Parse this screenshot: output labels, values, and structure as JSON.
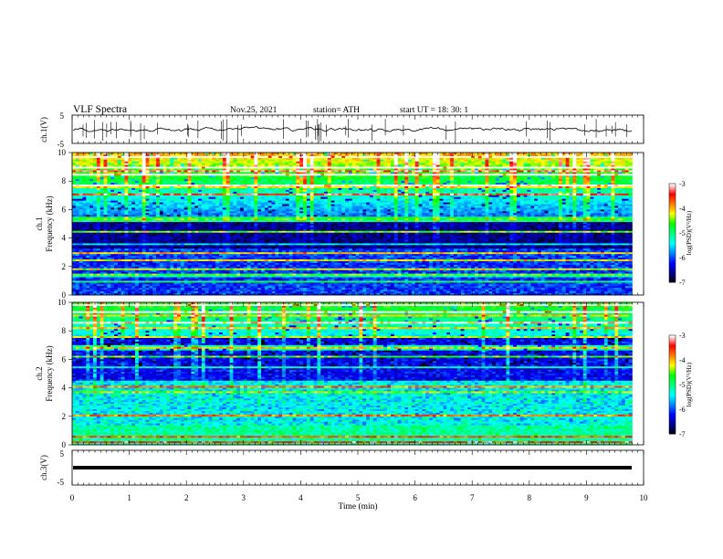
{
  "header": {
    "title": "VLF  Spectra",
    "date": "Nov.25, 2021",
    "station": "station= ATH",
    "start": "start  UT  =   18: 30: 1"
  },
  "chart_data": [
    {
      "type": "line",
      "panel": "ch1-waveform",
      "ylabel": "ch.1(V)",
      "yticks": [
        "5",
        "-5"
      ],
      "ylim": [
        -5,
        5
      ],
      "color": "#000000"
    },
    {
      "type": "heatmap",
      "panel": "ch1-spectrogram",
      "ylabel": "ch.1\nFrequency  (kHz)",
      "ylabel_lines": [
        "ch.1",
        "Frequency  (kHz)"
      ],
      "yticks": [
        "10",
        "8",
        "6",
        "4",
        "2",
        "0"
      ],
      "ylim": [
        0,
        10
      ],
      "colorbar": {
        "label": "log(PSD)(V²/Hz)",
        "ticks": [
          "-3",
          "-4",
          "-5",
          "-6",
          "-7"
        ],
        "range": [
          -7,
          -3
        ]
      }
    },
    {
      "type": "heatmap",
      "panel": "ch2-spectrogram",
      "ylabel": "ch.2\nFrequency  (kHz)",
      "ylabel_lines": [
        "ch.2",
        "Frequency  (kHz)"
      ],
      "yticks": [
        "10",
        "8",
        "6",
        "4",
        "2",
        "0"
      ],
      "ylim": [
        0,
        10
      ],
      "colorbar": {
        "label": "log(PSD)(V²/Hz)",
        "ticks": [
          "-3",
          "-4",
          "-5",
          "-6",
          "-7"
        ],
        "range": [
          -7,
          -3
        ]
      }
    },
    {
      "type": "line",
      "panel": "ch3-waveform",
      "ylabel": "ch.3(V)",
      "yticks": [
        "5",
        "-5"
      ],
      "ylim": [
        -5,
        5
      ],
      "color": "#000000"
    }
  ],
  "xaxis": {
    "label": "Time  (min)",
    "ticks": [
      "0",
      "1",
      "2",
      "3",
      "4",
      "5",
      "6",
      "7",
      "8",
      "9",
      "10"
    ],
    "range": [
      0,
      10
    ],
    "data_end": 9.8
  },
  "colors": {
    "colormap": [
      "#000000",
      "#00008b",
      "#0000ff",
      "#0080ff",
      "#00ffff",
      "#00ff80",
      "#00ff00",
      "#ffff00",
      "#ff8000",
      "#ff0000",
      "#ffffff"
    ]
  }
}
